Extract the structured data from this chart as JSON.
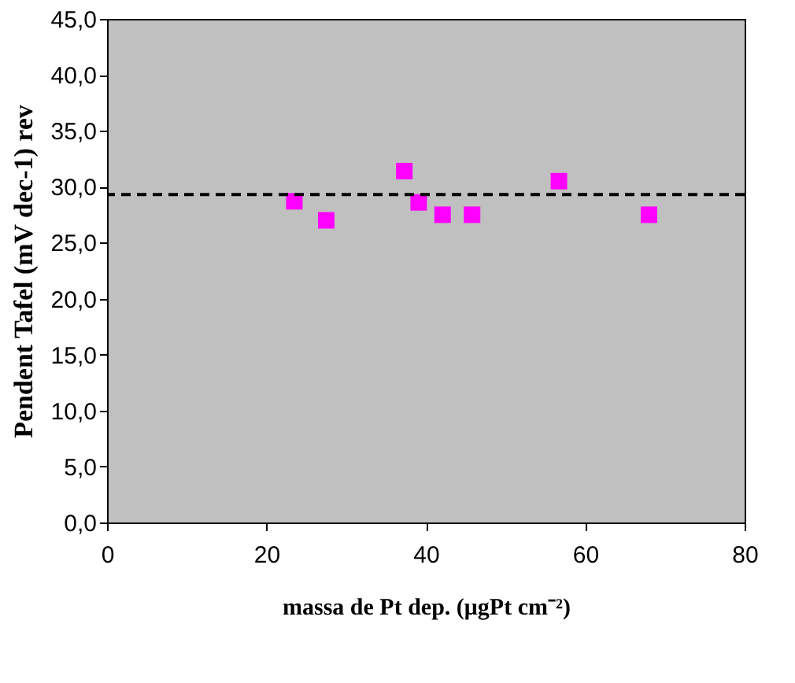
{
  "chart_data": {
    "type": "scatter",
    "xlabel": "massa de Pt dep. (μgPt cm⁻²)",
    "ylabel": "Pendent Tafel (mV dec-1)  rev",
    "x": [
      23.5,
      27.5,
      37.3,
      39.1,
      42.1,
      45.8,
      56.7,
      68.0
    ],
    "series": [
      {
        "color": "#ff00ff",
        "values": [
          28.7,
          27.0,
          31.4,
          28.6,
          27.5,
          27.5,
          30.5,
          27.5
        ]
      }
    ],
    "marker": "square",
    "xlim": [
      0,
      80
    ],
    "xticks": [
      0,
      20,
      40,
      60,
      80
    ],
    "ylim": [
      0,
      45
    ],
    "yticks": [
      {
        "value": 0,
        "label": "0,0"
      },
      {
        "value": 5,
        "label": "5,0"
      },
      {
        "value": 10,
        "label": "10,0"
      },
      {
        "value": 15,
        "label": "15,0"
      },
      {
        "value": 20,
        "label": "20,0"
      },
      {
        "value": 25,
        "label": "25,0"
      },
      {
        "value": 30,
        "label": "30,0"
      },
      {
        "value": 35,
        "label": "35,0"
      },
      {
        "value": 40,
        "label": "40,0"
      },
      {
        "value": 45,
        "label": "45,0"
      }
    ],
    "ref_lines": [
      {
        "axis": "y",
        "value": 29.3,
        "color": "#000000",
        "line_style": "dashed"
      }
    ],
    "grid": false
  }
}
